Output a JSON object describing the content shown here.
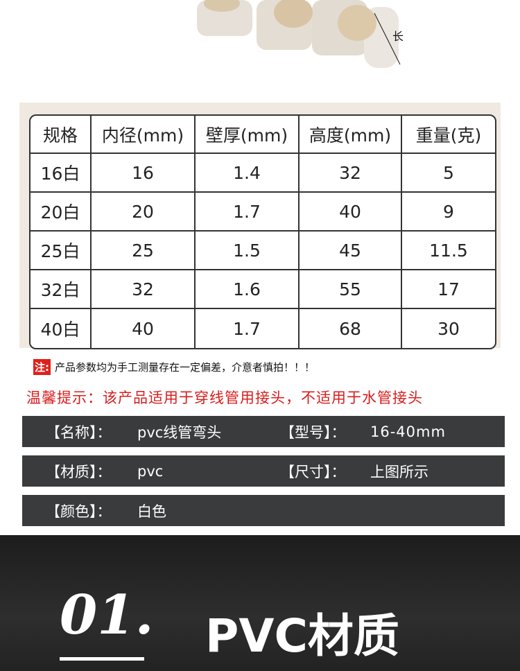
{
  "photo": {
    "dimension_label": "长"
  },
  "table": {
    "headers": [
      "规格",
      "内径(mm)",
      "壁厚(mm)",
      "高度(mm)",
      "重量(克)"
    ],
    "rows": [
      [
        "16白",
        "16",
        "1.4",
        "32",
        "5"
      ],
      [
        "20白",
        "20",
        "1.7",
        "40",
        "9"
      ],
      [
        "25白",
        "25",
        "1.5",
        "45",
        "11.5"
      ],
      [
        "32白",
        "32",
        "1.6",
        "55",
        "17"
      ],
      [
        "40白",
        "40",
        "1.7",
        "68",
        "30"
      ]
    ]
  },
  "note": {
    "tag": "注:",
    "text": "产品参数均为手工测量存在一定偏差，介意者慎拍！！！"
  },
  "tip": "温馨提示：该产品适用于穿线管用接头，不适用于水管接头",
  "specs": [
    {
      "label1": "【名称】：",
      "value1": "pvc线管弯头",
      "label2": "【型号】：",
      "value2": "16-40mm"
    },
    {
      "label1": "【材质】：",
      "value1": "pvc",
      "label2": "【尺寸】：",
      "value2": "上图所示"
    },
    {
      "label1": "【颜色】：",
      "value1": "白色"
    }
  ],
  "section": {
    "number": "01.",
    "title": "PVC材质"
  }
}
